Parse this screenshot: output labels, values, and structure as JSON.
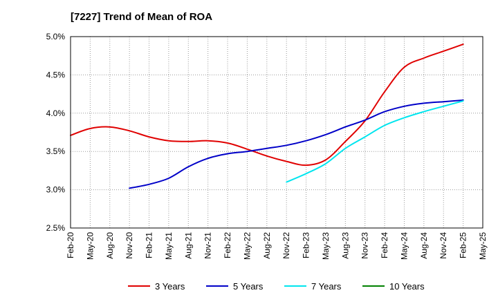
{
  "chart_data": {
    "type": "line",
    "title": "[7227]  Trend of Mean of ROA",
    "xlabel": "",
    "ylabel": "",
    "categories": [
      "Feb-20",
      "May-20",
      "Aug-20",
      "Nov-20",
      "Feb-21",
      "May-21",
      "Aug-21",
      "Nov-21",
      "Feb-22",
      "May-22",
      "Aug-22",
      "Nov-22",
      "Feb-23",
      "May-23",
      "Aug-23",
      "Nov-23",
      "Feb-24",
      "May-24",
      "Aug-24",
      "Nov-24",
      "Feb-25",
      "May-25"
    ],
    "ylim": [
      2.5,
      5.0
    ],
    "yticks": [
      "2.5%",
      "3.0%",
      "3.5%",
      "4.0%",
      "4.5%",
      "5.0%"
    ],
    "ytick_values": [
      2.5,
      3.0,
      3.5,
      4.0,
      4.5,
      5.0
    ],
    "grid": true,
    "legend_position": "bottom",
    "series": [
      {
        "name": "3 Years",
        "color": "#e00000",
        "values": [
          3.71,
          3.8,
          3.82,
          3.77,
          3.69,
          3.64,
          3.63,
          3.64,
          3.61,
          3.53,
          3.44,
          3.37,
          3.32,
          3.39,
          3.63,
          3.9,
          4.28,
          4.6,
          4.72,
          4.81,
          4.9,
          null
        ]
      },
      {
        "name": "5 Years",
        "color": "#0000c8",
        "values": [
          null,
          null,
          null,
          3.02,
          3.07,
          3.15,
          3.3,
          3.41,
          3.47,
          3.5,
          3.54,
          3.58,
          3.64,
          3.72,
          3.82,
          3.91,
          4.02,
          4.09,
          4.13,
          4.15,
          4.17,
          null
        ]
      },
      {
        "name": "7 Years",
        "color": "#00e5ee",
        "values": [
          null,
          null,
          null,
          null,
          null,
          null,
          null,
          null,
          null,
          null,
          null,
          3.1,
          3.21,
          3.34,
          3.54,
          3.69,
          3.84,
          3.94,
          4.02,
          4.09,
          4.16,
          null
        ]
      },
      {
        "name": "10 Years",
        "color": "#008000",
        "values": [
          null,
          null,
          null,
          null,
          null,
          null,
          null,
          null,
          null,
          null,
          null,
          null,
          null,
          null,
          null,
          null,
          null,
          null,
          null,
          null,
          null,
          null
        ]
      }
    ]
  }
}
